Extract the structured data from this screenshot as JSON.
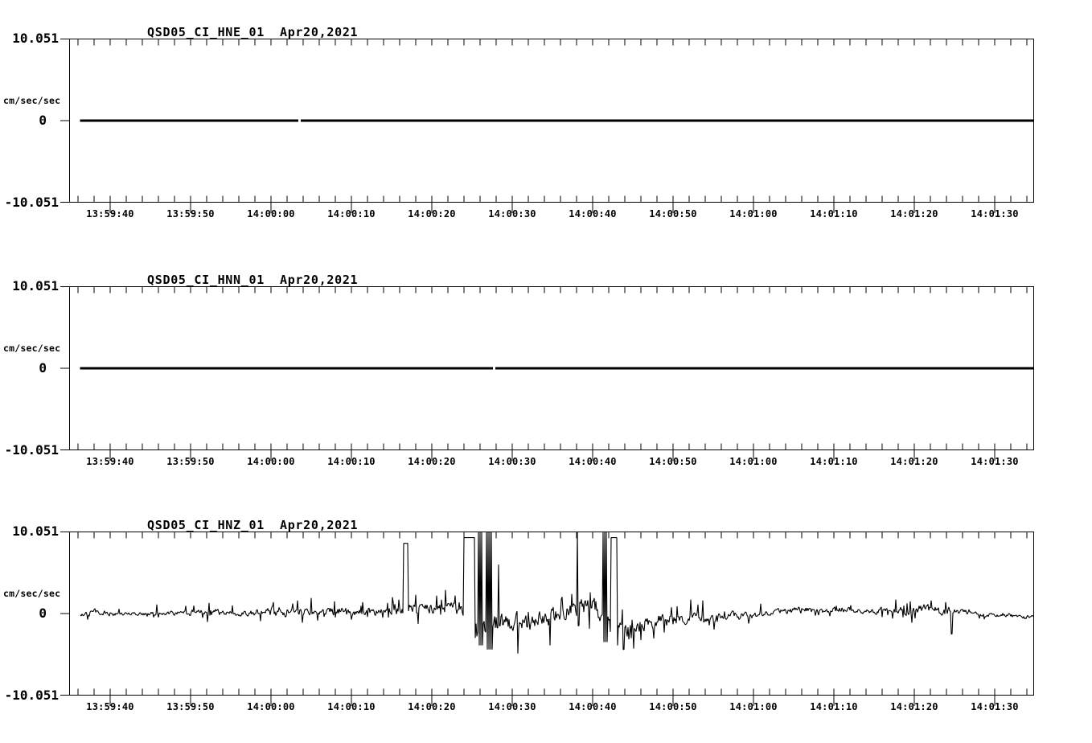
{
  "figure": {
    "background": "#ffffff",
    "ink": "#000000",
    "panels": [
      {
        "title": "QSD05_CI_HNE_01",
        "date": "Apr20,2021",
        "y_max": "10.051",
        "y_zero": "0",
        "y_min": "-10.051",
        "unit": "cm/sec/sec"
      },
      {
        "title": "QSD05_CI_HNN_01",
        "date": "Apr20,2021",
        "y_max": "10.051",
        "y_zero": "0",
        "y_min": "-10.051",
        "unit": "cm/sec/sec"
      },
      {
        "title": "QSD05_CI_HNZ_01",
        "date": "Apr20,2021",
        "y_max": "10.051",
        "y_zero": "0",
        "y_min": "-10.051",
        "unit": "cm/sec/sec"
      }
    ]
  },
  "chart_data": {
    "type": "line",
    "title": "QSD05 CI strong-motion acceleration traces, Apr20,2021",
    "ylabel": "cm/sec/sec",
    "ylim": [
      -10.051,
      10.051
    ],
    "yticks": [
      -10.051,
      0,
      10.051
    ],
    "x_start": "13:59:35",
    "x_end": "14:01:35",
    "x_ticks": [
      "13:59:40",
      "13:59:50",
      "14:00:00",
      "14:00:10",
      "14:00:20",
      "14:00:30",
      "14:00:40",
      "14:00:50",
      "14:01:00",
      "14:01:10",
      "14:01:20",
      "14:01:30"
    ],
    "x_major_interval_s": 10,
    "x_minor_interval_s": 2,
    "grid": false,
    "legend": "none",
    "panels": [
      {
        "channel": "QSD05_CI_HNE_01",
        "date": "Apr20,2021",
        "type": "flat",
        "value": 0.0,
        "t_start_s": 1.35,
        "t_end_s": 120,
        "glitch_t_s": 28.6
      },
      {
        "channel": "QSD05_CI_HNN_01",
        "date": "Apr20,2021",
        "type": "flat",
        "value": 0.0,
        "t_start_s": 1.35,
        "t_end_s": 120,
        "glitch_t_s": 52.8
      },
      {
        "channel": "QSD05_CI_HNZ_01",
        "date": "Apr20,2021",
        "type": "waveform",
        "t_start_s": 1.35,
        "t_end_s": 120,
        "noise_seed": 20210420,
        "envelope": [
          [
            1.35,
            0.0,
            0.35
          ],
          [
            3,
            0.1,
            0.6
          ],
          [
            5.5,
            0.0,
            0.35
          ],
          [
            8,
            -0.05,
            0.3
          ],
          [
            12,
            0.0,
            0.3
          ],
          [
            16.4,
            0.1,
            0.55
          ],
          [
            17.5,
            0.2,
            0.85
          ],
          [
            19,
            0.1,
            0.5
          ],
          [
            21,
            0.0,
            0.4
          ],
          [
            23,
            0.1,
            0.5
          ],
          [
            25,
            0.2,
            0.75
          ],
          [
            26.5,
            0.3,
            0.95
          ],
          [
            28,
            0.2,
            0.7
          ],
          [
            30,
            0.15,
            0.6
          ],
          [
            32,
            0.2,
            0.7
          ],
          [
            34,
            0.2,
            0.75
          ],
          [
            36,
            0.1,
            0.6
          ],
          [
            38,
            0.2,
            0.7
          ],
          [
            40,
            0.25,
            0.6
          ],
          [
            41.5,
            0.4,
            0.8
          ],
          [
            42.5,
            0.6,
            0.9
          ],
          [
            44,
            0.5,
            0.8
          ],
          [
            45.5,
            0.7,
            1.0
          ],
          [
            46.5,
            1.0,
            1.3
          ],
          [
            47.5,
            0.8,
            1.1
          ],
          [
            48.5,
            0.3,
            0.8
          ],
          [
            49.8,
            -0.3,
            1.0
          ],
          [
            50.5,
            -1.4,
            2.2
          ],
          [
            51.5,
            -1.9,
            2.6
          ],
          [
            52.5,
            -1.5,
            2.2
          ],
          [
            53.5,
            -1.0,
            1.7
          ],
          [
            54.5,
            -1.2,
            1.5
          ],
          [
            55.5,
            -0.8,
            1.4
          ],
          [
            56.5,
            -1.0,
            1.5
          ],
          [
            57.5,
            -1.2,
            1.4
          ],
          [
            58.5,
            -0.6,
            1.2
          ],
          [
            59.5,
            -0.8,
            1.3
          ],
          [
            60.5,
            -0.4,
            1.5
          ],
          [
            61.5,
            0.2,
            1.2
          ],
          [
            62.5,
            0.4,
            1.3
          ],
          [
            63.5,
            0.5,
            1.5
          ],
          [
            64.5,
            0.8,
            1.7
          ],
          [
            65.6,
            1.0,
            1.5
          ],
          [
            66.2,
            -0.9,
            1.4
          ],
          [
            67.1,
            -1.2,
            1.3
          ],
          [
            68.5,
            -1.6,
            1.2
          ],
          [
            69.5,
            -2.0,
            1.4
          ],
          [
            70.5,
            -1.5,
            1.2
          ],
          [
            72,
            -1.0,
            1.1
          ],
          [
            73.5,
            -0.8,
            1.0
          ],
          [
            75,
            -1.0,
            1.1
          ],
          [
            76.5,
            -0.6,
            0.9
          ],
          [
            78,
            -0.4,
            0.8
          ],
          [
            79.5,
            -0.5,
            0.8
          ],
          [
            81,
            -0.3,
            0.6
          ],
          [
            82.5,
            -0.2,
            0.6
          ],
          [
            84,
            -0.4,
            0.65
          ],
          [
            85.5,
            -0.2,
            0.5
          ],
          [
            87,
            0.0,
            0.4
          ],
          [
            88.5,
            0.3,
            0.5
          ],
          [
            90,
            0.4,
            0.55
          ],
          [
            91.5,
            0.5,
            0.55
          ],
          [
            93,
            0.4,
            0.5
          ],
          [
            94.5,
            0.3,
            0.45
          ],
          [
            96,
            0.5,
            0.5
          ],
          [
            97.5,
            0.4,
            0.45
          ],
          [
            99,
            0.2,
            0.4
          ],
          [
            100.5,
            0.3,
            0.45
          ],
          [
            102,
            0.5,
            0.55
          ],
          [
            103.5,
            0.4,
            0.65
          ],
          [
            105,
            0.35,
            0.75
          ],
          [
            106.5,
            0.5,
            0.85
          ],
          [
            108,
            0.4,
            0.9
          ],
          [
            109.5,
            0.3,
            0.8
          ],
          [
            110.8,
            0.2,
            0.55
          ],
          [
            112,
            0.3,
            0.45
          ],
          [
            113.5,
            -0.2,
            0.35
          ],
          [
            115,
            -0.3,
            0.35
          ],
          [
            116.5,
            -0.25,
            0.35
          ],
          [
            118,
            -0.4,
            0.35
          ],
          [
            119.5,
            -0.5,
            0.35
          ],
          [
            120,
            -0.5,
            0.3
          ]
        ],
        "spikes": [
          [
            10.9,
            1.1
          ],
          [
            17.4,
            1.3
          ],
          [
            20.3,
            1.0
          ],
          [
            25.4,
            1.4
          ],
          [
            28.4,
            1.6
          ],
          [
            30.1,
            1.9
          ],
          [
            33.0,
            1.5
          ],
          [
            36.5,
            1.4
          ],
          [
            40.2,
            2.0
          ],
          [
            43.1,
            2.3
          ],
          [
            46.8,
            2.9
          ],
          [
            48.0,
            2.2
          ],
          [
            55.8,
            -4.9
          ],
          [
            59.8,
            -3.9
          ],
          [
            62.5,
            2.4
          ],
          [
            64.8,
            2.6
          ],
          [
            70.2,
            -4.3
          ],
          [
            77.3,
            1.7
          ],
          [
            78.8,
            1.6
          ],
          [
            86.0,
            1.2
          ],
          [
            102.8,
            1.7
          ],
          [
            104.6,
            1.5
          ],
          [
            107.2,
            1.6
          ],
          [
            109.0,
            1.4
          ]
        ],
        "clips": [
          [
            41.6,
            0.6,
            8.6,
            0.3,
            1
          ],
          [
            49.1,
            1.4,
            9.3,
            -3.0,
            1
          ],
          [
            50.9,
            0.5,
            10.051,
            -3.9,
            0
          ],
          [
            51.9,
            0.7,
            10.051,
            -4.4,
            0
          ],
          [
            53.4,
            0.2,
            6.0,
            -1.5,
            0
          ],
          [
            63.2,
            0.2,
            10.051,
            -1.5,
            0
          ],
          [
            66.4,
            0.5,
            10.051,
            -3.5,
            0
          ],
          [
            67.4,
            0.8,
            9.3,
            -3.9,
            1
          ],
          [
            68.8,
            0.2,
            0.5,
            -4.4,
            0
          ],
          [
            109.6,
            0.2,
            0.3,
            -2.5,
            0
          ]
        ]
      }
    ]
  }
}
